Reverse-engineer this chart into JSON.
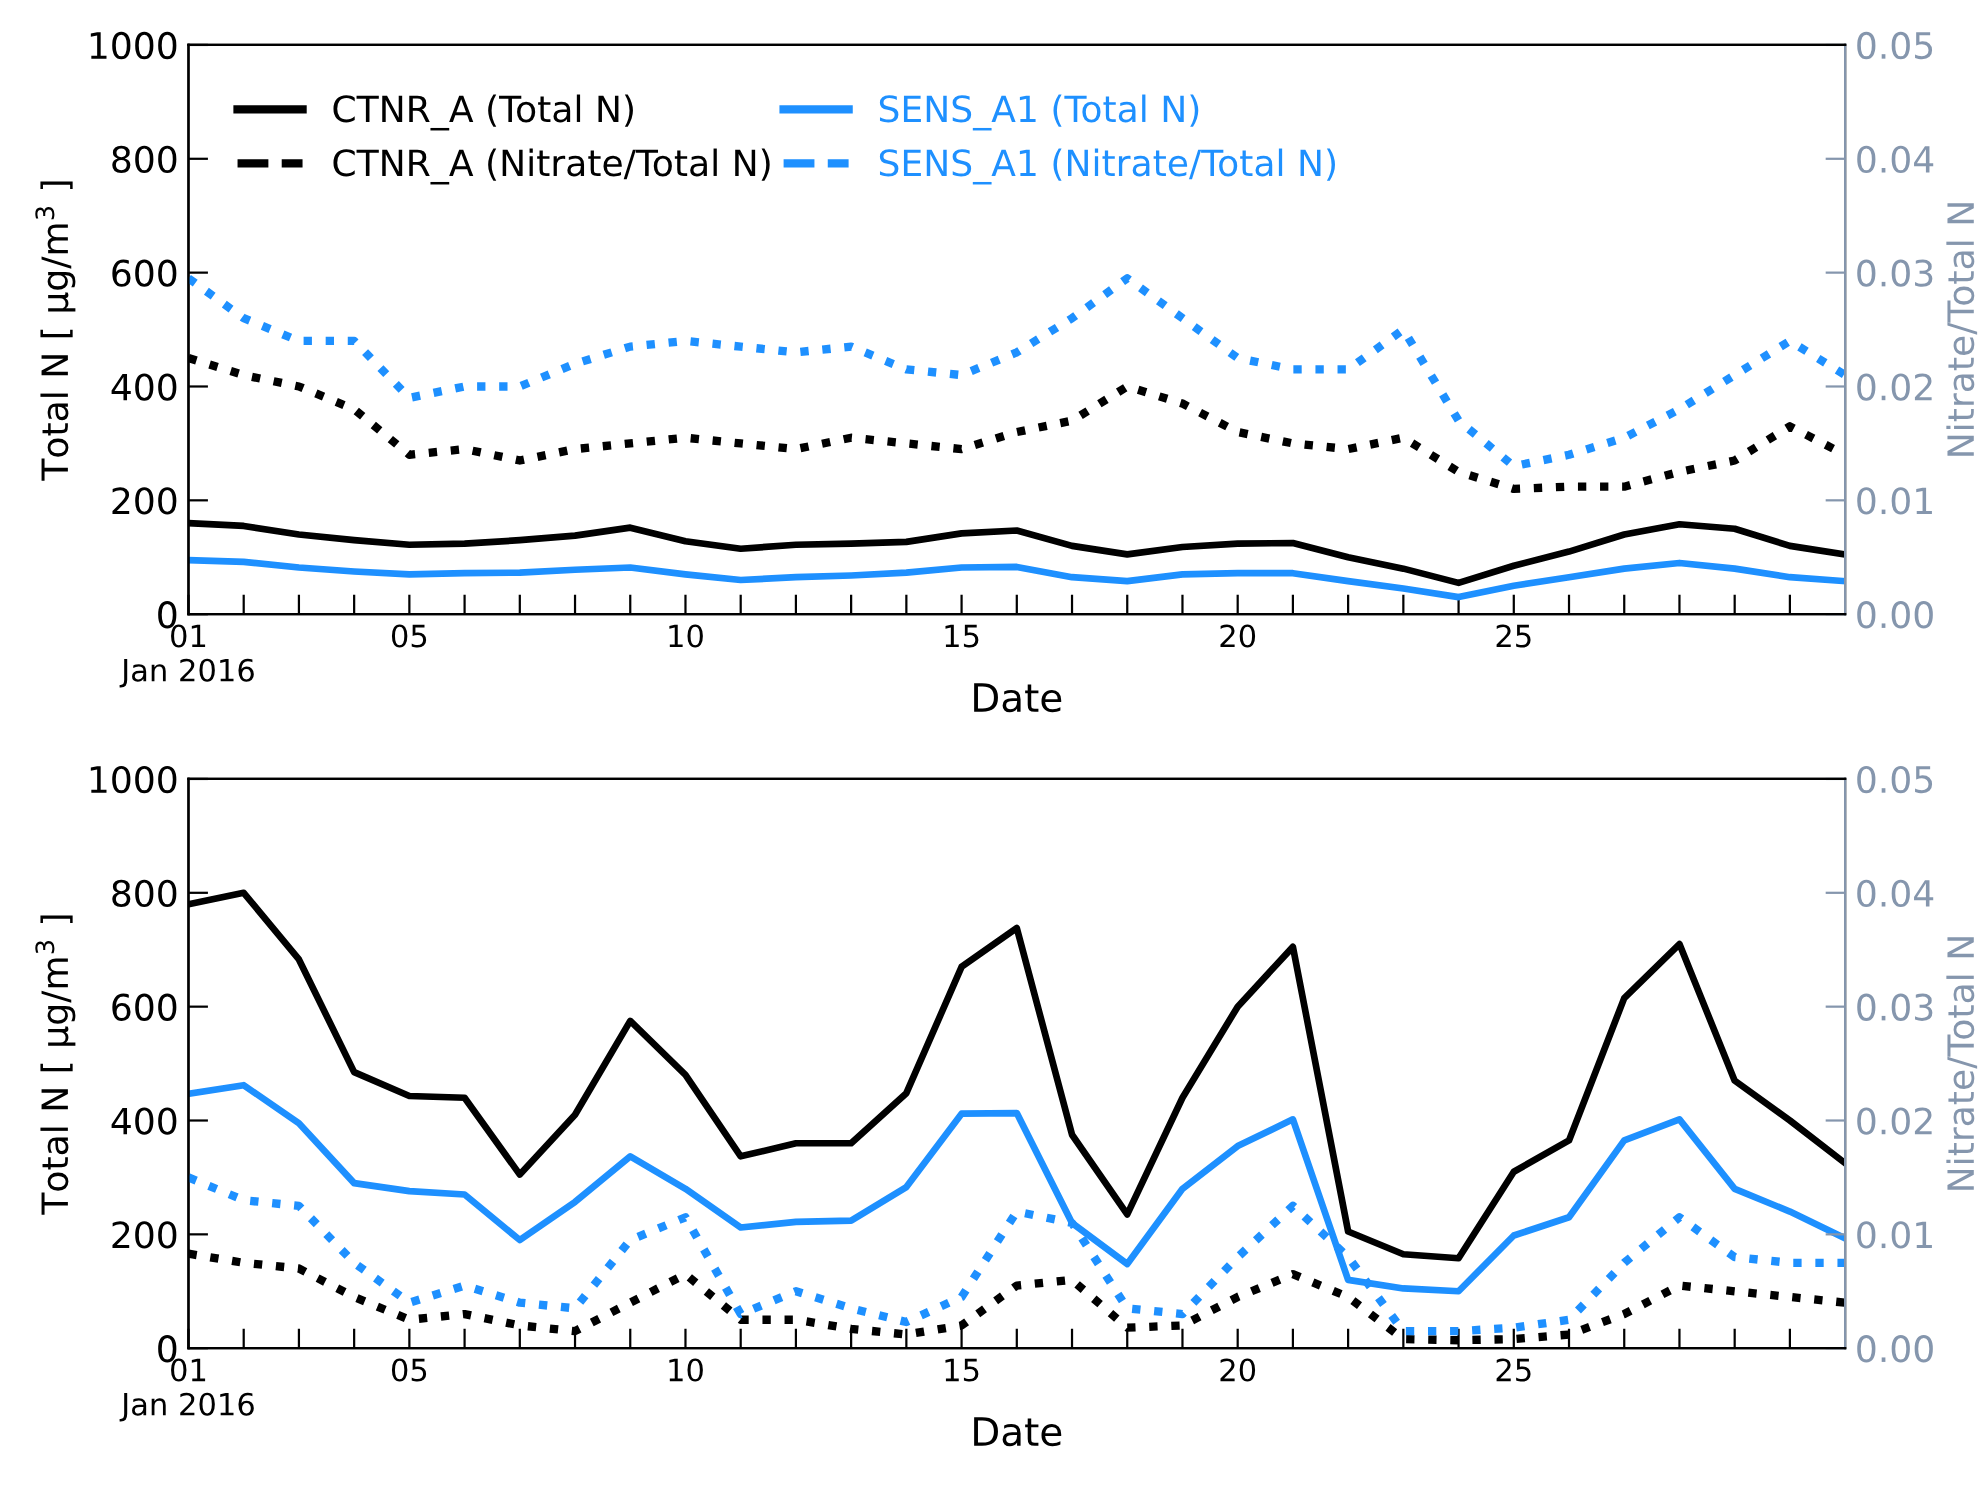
{
  "chart_data": [
    {
      "type": "line",
      "xlabel": "Date",
      "ylabel": "Total N [ μg/m$^{3}$ ]",
      "y2label": "Nitrate/Total N",
      "legend": "top left",
      "grid": false,
      "x": [
        1,
        2,
        3,
        4,
        5,
        6,
        7,
        8,
        9,
        10,
        11,
        12,
        13,
        14,
        15,
        16,
        17,
        18,
        19,
        20,
        21,
        22,
        23,
        24,
        25,
        26,
        27,
        28,
        29,
        30,
        31
      ],
      "xlim": [
        1,
        31
      ],
      "xticks": [
        {
          "value": 1,
          "label": "01\nJan 2016"
        },
        {
          "value": 2,
          "label": null
        },
        {
          "value": 3,
          "label": null
        },
        {
          "value": 4,
          "label": null
        },
        {
          "value": 5,
          "label": "05"
        },
        {
          "value": 6,
          "label": null
        },
        {
          "value": 7,
          "label": null
        },
        {
          "value": 8,
          "label": null
        },
        {
          "value": 9,
          "label": null
        },
        {
          "value": 10,
          "label": "10"
        },
        {
          "value": 11,
          "label": null
        },
        {
          "value": 12,
          "label": null
        },
        {
          "value": 13,
          "label": null
        },
        {
          "value": 14,
          "label": null
        },
        {
          "value": 15,
          "label": "15"
        },
        {
          "value": 16,
          "label": null
        },
        {
          "value": 17,
          "label": null
        },
        {
          "value": 18,
          "label": null
        },
        {
          "value": 19,
          "label": null
        },
        {
          "value": 20,
          "label": "20"
        },
        {
          "value": 21,
          "label": null
        },
        {
          "value": 22,
          "label": null
        },
        {
          "value": 23,
          "label": null
        },
        {
          "value": 24,
          "label": null
        },
        {
          "value": 25,
          "label": "25"
        },
        {
          "value": 26,
          "label": null
        },
        {
          "value": 27,
          "label": null
        },
        {
          "value": 28,
          "label": null
        },
        {
          "value": 29,
          "label": null
        },
        {
          "value": 30,
          "label": null
        }
      ],
      "ylim": [
        0,
        1000
      ],
      "yticks": [
        0,
        200,
        400,
        600,
        800,
        1000
      ],
      "y2lim": [
        0,
        0.05
      ],
      "y2ticks": [
        {
          "value": 0,
          "label": "0.00"
        },
        {
          "value": 0.01,
          "label": "0.01"
        },
        {
          "value": 0.02,
          "label": "0.02"
        },
        {
          "value": 0.03,
          "label": "0.03"
        },
        {
          "value": 0.04,
          "label": "0.04"
        },
        {
          "value": 0.05,
          "label": "0.05"
        }
      ],
      "series": [
        {
          "name": "CTNR_A (Total N)",
          "color": "#000000",
          "line_style": "solid",
          "values": [
            160,
            155,
            140,
            130,
            122,
            124,
            130,
            138,
            152,
            128,
            115,
            122,
            124,
            127,
            142,
            147,
            120,
            105,
            118,
            124,
            125,
            100,
            80,
            55,
            85,
            110,
            140,
            158,
            150,
            120,
            105
          ]
        },
        {
          "name": "SENS_A1 (Total N)",
          "color": "#1e90ff",
          "line_style": "solid",
          "values": [
            95,
            92,
            82,
            75,
            70,
            72,
            73,
            78,
            82,
            70,
            60,
            65,
            68,
            73,
            82,
            83,
            65,
            58,
            70,
            72,
            72,
            58,
            45,
            30,
            50,
            65,
            80,
            90,
            80,
            65,
            58
          ]
        },
        {
          "name": "CTNR_A (Nitrate/Total N)",
          "color": "#000000",
          "line_style": "dotted",
          "axis": "y2",
          "values": [
            0.0225,
            0.021,
            0.02,
            0.018,
            0.014,
            0.0145,
            0.0135,
            0.0145,
            0.015,
            0.0155,
            0.015,
            0.0145,
            0.0155,
            0.015,
            0.0145,
            0.016,
            0.017,
            0.02,
            0.0185,
            0.016,
            0.015,
            0.0145,
            0.0155,
            0.0125,
            0.011,
            0.0112,
            0.0112,
            0.0125,
            0.0135,
            0.0165,
            0.014
          ]
        },
        {
          "name": "SENS_A1 (Nitrate/Total N)",
          "color": "#1e90ff",
          "line_style": "dotted",
          "axis": "y2",
          "values": [
            0.0295,
            0.026,
            0.024,
            0.024,
            0.019,
            0.02,
            0.02,
            0.022,
            0.0235,
            0.024,
            0.0235,
            0.023,
            0.0235,
            0.0215,
            0.021,
            0.023,
            0.026,
            0.0295,
            0.026,
            0.0225,
            0.0215,
            0.0215,
            0.025,
            0.017,
            0.013,
            0.014,
            0.0155,
            0.018,
            0.021,
            0.024,
            0.021
          ]
        }
      ]
    },
    {
      "type": "line",
      "xlabel": "Date",
      "ylabel": "Total N [ μg/m$^{3}$ ]",
      "y2label": "Nitrate/Total N",
      "legend": false,
      "grid": false,
      "x": [
        1,
        2,
        3,
        4,
        5,
        6,
        7,
        8,
        9,
        10,
        11,
        12,
        13,
        14,
        15,
        16,
        17,
        18,
        19,
        20,
        21,
        22,
        23,
        24,
        25,
        26,
        27,
        28,
        29,
        30,
        31
      ],
      "xlim": [
        1,
        31
      ],
      "xticks": [
        {
          "value": 1,
          "label": "01\nJan 2016"
        },
        {
          "value": 2,
          "label": null
        },
        {
          "value": 3,
          "label": null
        },
        {
          "value": 4,
          "label": null
        },
        {
          "value": 5,
          "label": "05"
        },
        {
          "value": 6,
          "label": null
        },
        {
          "value": 7,
          "label": null
        },
        {
          "value": 8,
          "label": null
        },
        {
          "value": 9,
          "label": null
        },
        {
          "value": 10,
          "label": "10"
        },
        {
          "value": 11,
          "label": null
        },
        {
          "value": 12,
          "label": null
        },
        {
          "value": 13,
          "label": null
        },
        {
          "value": 14,
          "label": null
        },
        {
          "value": 15,
          "label": "15"
        },
        {
          "value": 16,
          "label": null
        },
        {
          "value": 17,
          "label": null
        },
        {
          "value": 18,
          "label": null
        },
        {
          "value": 19,
          "label": null
        },
        {
          "value": 20,
          "label": "20"
        },
        {
          "value": 21,
          "label": null
        },
        {
          "value": 22,
          "label": null
        },
        {
          "value": 23,
          "label": null
        },
        {
          "value": 24,
          "label": null
        },
        {
          "value": 25,
          "label": "25"
        },
        {
          "value": 26,
          "label": null
        },
        {
          "value": 27,
          "label": null
        },
        {
          "value": 28,
          "label": null
        },
        {
          "value": 29,
          "label": null
        },
        {
          "value": 30,
          "label": null
        }
      ],
      "ylim": [
        0,
        1000
      ],
      "yticks": [
        0,
        200,
        400,
        600,
        800,
        1000
      ],
      "y2lim": [
        0,
        0.05
      ],
      "y2ticks": [
        {
          "value": 0,
          "label": "0.00"
        },
        {
          "value": 0.01,
          "label": "0.01"
        },
        {
          "value": 0.02,
          "label": "0.02"
        },
        {
          "value": 0.03,
          "label": "0.03"
        },
        {
          "value": 0.04,
          "label": "0.04"
        },
        {
          "value": 0.05,
          "label": "0.05"
        }
      ],
      "series": [
        {
          "color": "#000000",
          "line_style": "solid",
          "values": [
            780,
            800,
            683,
            485,
            443,
            440,
            305,
            410,
            575,
            480,
            337,
            360,
            360,
            448,
            670,
            738,
            375,
            235,
            440,
            600,
            705,
            205,
            165,
            158,
            310,
            365,
            615,
            710,
            470,
            400,
            325
          ]
        },
        {
          "color": "#1e90ff",
          "line_style": "solid",
          "values": [
            447,
            462,
            395,
            290,
            276,
            270,
            190,
            257,
            337,
            280,
            212,
            222,
            224,
            283,
            412,
            413,
            220,
            148,
            280,
            355,
            402,
            120,
            105,
            100,
            198,
            230,
            365,
            402,
            280,
            240,
            193
          ]
        },
        {
          "color": "#000000",
          "line_style": "dotted",
          "axis": "y2",
          "values": [
            0.0083,
            0.0075,
            0.007,
            0.0045,
            0.0025,
            0.003,
            0.002,
            0.0015,
            0.004,
            0.0065,
            0.0025,
            0.0025,
            0.0017,
            0.0012,
            0.002,
            0.0055,
            0.006,
            0.0018,
            0.002,
            0.0045,
            0.0065,
            0.0045,
            0.0008,
            0.0007,
            0.0008,
            0.0012,
            0.003,
            0.0055,
            0.005,
            0.0045,
            0.004
          ]
        },
        {
          "color": "#1e90ff",
          "line_style": "dotted",
          "axis": "y2",
          "values": [
            0.015,
            0.013,
            0.0125,
            0.0075,
            0.004,
            0.0055,
            0.004,
            0.0035,
            0.0095,
            0.0115,
            0.003,
            0.005,
            0.0035,
            0.0023,
            0.0045,
            0.012,
            0.011,
            0.0035,
            0.003,
            0.008,
            0.0125,
            0.008,
            0.0015,
            0.0015,
            0.0018,
            0.0025,
            0.0075,
            0.0115,
            0.008,
            0.0075,
            0.0075
          ]
        }
      ]
    }
  ]
}
